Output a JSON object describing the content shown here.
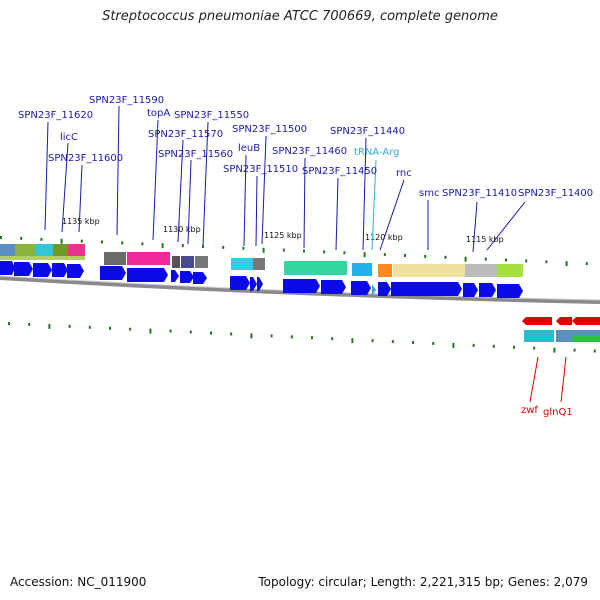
{
  "header": {
    "title": "Streptococcus pneumoniae ATCC 700669, complete genome"
  },
  "footer": {
    "accession": "Accession: NC_011900",
    "summary": "Topology: circular; Length: 2,221,315 bp; Genes: 2,079"
  },
  "colors": {
    "gene_arrow": "#0b0be8",
    "label_text": "#1a1aa8",
    "trna_label": "#33aadd",
    "reverse_gene": "#e00000",
    "reverse_label": "#dd0000",
    "tick": "#227722",
    "backbone": "#888888"
  },
  "scale": {
    "ticks": [
      {
        "label": "1135 kbp"
      },
      {
        "label": "1130 kbp"
      },
      {
        "label": "1125 kbp"
      },
      {
        "label": "1120 kbp"
      },
      {
        "label": "1115 kbp"
      }
    ]
  },
  "gene_labels": [
    {
      "text": "SPN23F_11620"
    },
    {
      "text": "SPN23F_11590"
    },
    {
      "text": "topA"
    },
    {
      "text": "SPN23F_11550"
    },
    {
      "text": "licC"
    },
    {
      "text": "SPN23F_11570"
    },
    {
      "text": "SPN23F_11500"
    },
    {
      "text": "SPN23F_11440"
    },
    {
      "text": "SPN23F_11600"
    },
    {
      "text": "SPN23F_11560"
    },
    {
      "text": "leuB"
    },
    {
      "text": "SPN23F_11460"
    },
    {
      "text": "tRNA-Arg"
    },
    {
      "text": "SPN23F_11510"
    },
    {
      "text": "SPN23F_11450"
    },
    {
      "text": "rnc"
    },
    {
      "text": "smc"
    },
    {
      "text": "SPN23F_11410"
    },
    {
      "text": "SPN23F_11400"
    },
    {
      "text": "zwf"
    },
    {
      "text": "glnQ1"
    }
  ]
}
